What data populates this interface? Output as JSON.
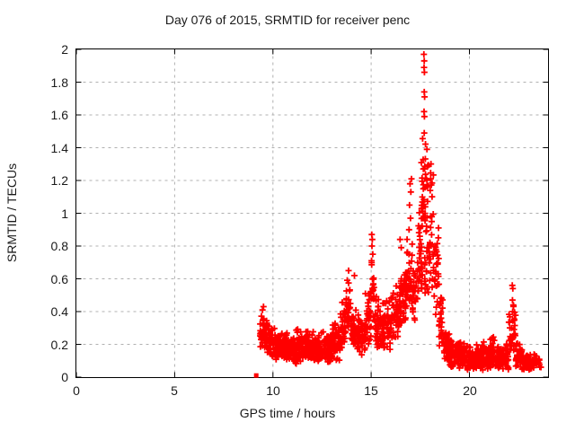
{
  "chart_data": {
    "type": "scatter",
    "title": "Day 076 of 2015, SRMTID for receiver penc",
    "xlabel": "GPS time / hours",
    "ylabel": "SRMTID / TECUs",
    "xlim": [
      0,
      24
    ],
    "ylim": [
      0,
      2
    ],
    "xticks": [
      0,
      5,
      10,
      15,
      20
    ],
    "yticks": [
      0,
      0.2,
      0.4,
      0.6,
      0.8,
      1,
      1.2,
      1.4,
      1.6,
      1.8,
      2
    ],
    "grid": {
      "show": true,
      "color": "#b0b0b0",
      "style": "dashed"
    },
    "marker": {
      "shape": "plus",
      "color": "#ff0000",
      "size": 7
    },
    "frame_color": "#000000",
    "legend": null,
    "time_range": [
      9.15,
      23.65
    ],
    "seed": 20150076,
    "square_point": [
      9.15,
      0.01
    ],
    "peak_points": [
      [
        17.68,
        1.97
      ],
      [
        17.7,
        1.93
      ],
      [
        17.69,
        1.89
      ],
      [
        17.71,
        1.86
      ],
      [
        17.7,
        1.74
      ],
      [
        17.72,
        1.71
      ],
      [
        17.69,
        1.62
      ],
      [
        17.71,
        1.59
      ],
      [
        17.7,
        1.49
      ],
      [
        17.05,
        1.21
      ],
      [
        16.98,
        1.18
      ],
      [
        17.02,
        1.13
      ],
      [
        16.95,
        1.05
      ],
      [
        17.0,
        0.97
      ],
      [
        16.93,
        0.9
      ],
      [
        15.03,
        0.87
      ],
      [
        15.06,
        0.84
      ],
      [
        15.04,
        0.8
      ],
      [
        15.08,
        0.75
      ],
      [
        15.02,
        0.71
      ],
      [
        16.47,
        0.84
      ],
      [
        16.53,
        0.79
      ],
      [
        13.85,
        0.65
      ],
      [
        14.15,
        0.62
      ],
      [
        22.18,
        0.56
      ],
      [
        22.21,
        0.54
      ],
      [
        22.19,
        0.47
      ],
      [
        22.23,
        0.44
      ],
      [
        22.2,
        0.4
      ],
      [
        9.52,
        0.43
      ],
      [
        9.47,
        0.41
      ]
    ],
    "scatter_bands": [
      [
        9.35,
        9.55,
        0.18,
        0.43,
        28
      ],
      [
        9.55,
        9.8,
        0.15,
        0.38,
        32
      ],
      [
        9.8,
        10.1,
        0.12,
        0.32,
        40
      ],
      [
        10.1,
        10.5,
        0.1,
        0.28,
        52
      ],
      [
        10.5,
        11.0,
        0.1,
        0.28,
        62
      ],
      [
        11.0,
        11.5,
        0.08,
        0.3,
        62
      ],
      [
        11.5,
        12.0,
        0.1,
        0.3,
        62
      ],
      [
        12.0,
        12.5,
        0.08,
        0.28,
        62
      ],
      [
        12.5,
        13.0,
        0.08,
        0.3,
        62
      ],
      [
        13.0,
        13.4,
        0.1,
        0.35,
        50
      ],
      [
        13.4,
        13.7,
        0.15,
        0.48,
        38
      ],
      [
        13.7,
        13.95,
        0.25,
        0.65,
        30
      ],
      [
        13.95,
        14.3,
        0.15,
        0.45,
        42
      ],
      [
        14.3,
        14.7,
        0.12,
        0.4,
        48
      ],
      [
        14.7,
        15.0,
        0.2,
        0.6,
        35
      ],
      [
        15.0,
        15.15,
        0.35,
        0.78,
        16
      ],
      [
        15.15,
        15.5,
        0.18,
        0.52,
        40
      ],
      [
        15.5,
        16.0,
        0.15,
        0.55,
        58
      ],
      [
        16.0,
        16.4,
        0.2,
        0.62,
        48
      ],
      [
        16.4,
        16.75,
        0.28,
        0.72,
        42
      ],
      [
        16.75,
        17.1,
        0.35,
        0.88,
        38
      ],
      [
        17.1,
        17.4,
        0.3,
        0.82,
        32
      ],
      [
        17.4,
        17.6,
        0.4,
        1.1,
        28
      ],
      [
        17.55,
        17.95,
        0.85,
        1.5,
        42
      ],
      [
        17.55,
        17.95,
        0.45,
        0.88,
        22
      ],
      [
        17.95,
        18.2,
        0.5,
        1.38,
        30
      ],
      [
        18.2,
        18.45,
        0.3,
        1.05,
        26
      ],
      [
        18.45,
        18.7,
        0.15,
        0.58,
        28
      ],
      [
        18.7,
        19.0,
        0.08,
        0.36,
        36
      ],
      [
        19.0,
        19.5,
        0.05,
        0.26,
        56
      ],
      [
        19.5,
        20.0,
        0.04,
        0.22,
        60
      ],
      [
        20.0,
        20.5,
        0.03,
        0.2,
        60
      ],
      [
        20.5,
        21.0,
        0.04,
        0.22,
        60
      ],
      [
        21.0,
        21.5,
        0.05,
        0.26,
        60
      ],
      [
        21.5,
        22.0,
        0.04,
        0.22,
        60
      ],
      [
        22.0,
        22.15,
        0.1,
        0.45,
        14
      ],
      [
        22.15,
        22.35,
        0.15,
        0.46,
        20
      ],
      [
        22.35,
        22.6,
        0.06,
        0.22,
        26
      ],
      [
        22.6,
        23.0,
        0.04,
        0.18,
        40
      ],
      [
        23.0,
        23.4,
        0.04,
        0.16,
        34
      ],
      [
        23.4,
        23.65,
        0.05,
        0.14,
        14
      ]
    ]
  }
}
